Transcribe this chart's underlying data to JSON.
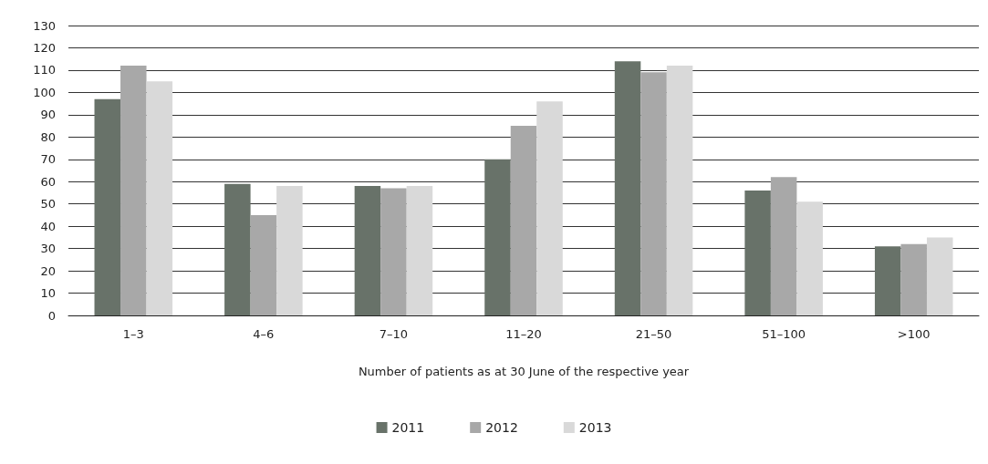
{
  "chart_data": {
    "type": "bar",
    "xlabel": "Number of patients as at 30 June of the respective year",
    "categories": [
      "1–3",
      "4–6",
      "7–10",
      "11–20",
      "21–50",
      "51–100",
      ">100"
    ],
    "series": [
      {
        "name": "2011",
        "color": "#687269",
        "values": [
          97,
          59,
          58,
          70,
          114,
          56,
          31
        ]
      },
      {
        "name": "2012",
        "color": "#a8a8a8",
        "values": [
          112,
          45,
          57,
          85,
          109,
          62,
          32
        ]
      },
      {
        "name": "2013",
        "color": "#d9d9d9",
        "values": [
          105,
          58,
          58,
          96,
          112,
          51,
          35
        ]
      }
    ],
    "ylim": [
      0,
      130
    ],
    "yticks": [
      0,
      10,
      20,
      30,
      40,
      50,
      60,
      70,
      80,
      90,
      100,
      110,
      120,
      130
    ],
    "grid": "y",
    "legend": "bottom"
  }
}
